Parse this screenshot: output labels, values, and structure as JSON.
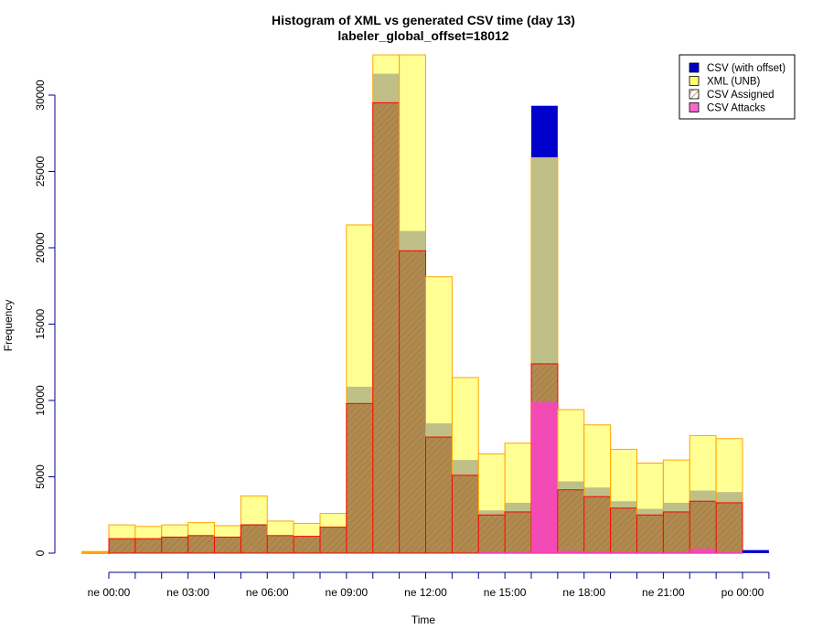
{
  "chart_data": {
    "type": "bar",
    "title": "Histogram of XML vs generated CSV time (day 13)",
    "subtitle": "labeler_global_offset=18012",
    "xlabel": "Time",
    "ylabel": "Frequency",
    "ylim": [
      0,
      32500
    ],
    "y_ticks": [
      0,
      5000,
      10000,
      15000,
      20000,
      25000,
      30000
    ],
    "x_tick_labels": [
      "ne 00:00",
      "ne 03:00",
      "ne 06:00",
      "ne 09:00",
      "ne 12:00",
      "ne 15:00",
      "ne 18:00",
      "ne 21:00",
      "po 00:00"
    ],
    "legend": {
      "position": "top-right",
      "entries": [
        {
          "label": "CSV (with offset)",
          "color": "#0000cd",
          "pattern": "solid"
        },
        {
          "label": "XML (UNB)",
          "color": "#ffff70",
          "pattern": "solid"
        },
        {
          "label": "CSV Assigned",
          "color": "#cd9c70",
          "pattern": "hatched"
        },
        {
          "label": "CSV Attacks",
          "color": "#ff66cc",
          "pattern": "solid"
        }
      ]
    },
    "bins_hours": [
      -1,
      0,
      1,
      2,
      3,
      4,
      5,
      6,
      7,
      8,
      9,
      10,
      11,
      12,
      13,
      14,
      15,
      16,
      17,
      18,
      19,
      20,
      21,
      22,
      23,
      24
    ],
    "series": [
      {
        "name": "CSV (with offset)",
        "color": "#0000cd",
        "values": [
          0,
          950,
          950,
          1050,
          1150,
          1050,
          1900,
          1150,
          1100,
          1700,
          10900,
          31400,
          21100,
          8500,
          6100,
          2800,
          3300,
          29300,
          4700,
          4300,
          3400,
          2900,
          3300,
          4100,
          4000,
          200
        ]
      },
      {
        "name": "XML (UNB)",
        "color": "#ffff70",
        "values": [
          80,
          1850,
          1750,
          1850,
          2000,
          1800,
          3750,
          2100,
          1950,
          2600,
          21500,
          33500,
          33500,
          18100,
          11500,
          6500,
          7200,
          25900,
          9400,
          8400,
          6800,
          5900,
          6100,
          7700,
          7500,
          0
        ]
      },
      {
        "name": "CSV Assigned",
        "color": "#cd9c70",
        "values": [
          0,
          950,
          950,
          1050,
          1150,
          1050,
          1850,
          1150,
          1100,
          1700,
          9800,
          29500,
          19800,
          7600,
          5100,
          2500,
          2700,
          12400,
          4150,
          3700,
          2950,
          2500,
          2700,
          3400,
          3300,
          0
        ]
      },
      {
        "name": "CSV Attacks",
        "color": "#ff66cc",
        "values": [
          0,
          0,
          0,
          0,
          0,
          0,
          0,
          0,
          0,
          0,
          0,
          0,
          0,
          0,
          0,
          80,
          80,
          9900,
          150,
          120,
          100,
          80,
          80,
          300,
          80,
          0
        ]
      }
    ]
  },
  "colors": {
    "csv_offset_fill": "#0000cd",
    "xml_fill": "#ffff70",
    "xml_border": "#ffa500",
    "overlap_fill": "#b5b060",
    "assigned_hatch": "#b08a50",
    "assigned_border": "#ff0000",
    "attacks_fill": "#ff40c8",
    "axis": "#00008b"
  }
}
